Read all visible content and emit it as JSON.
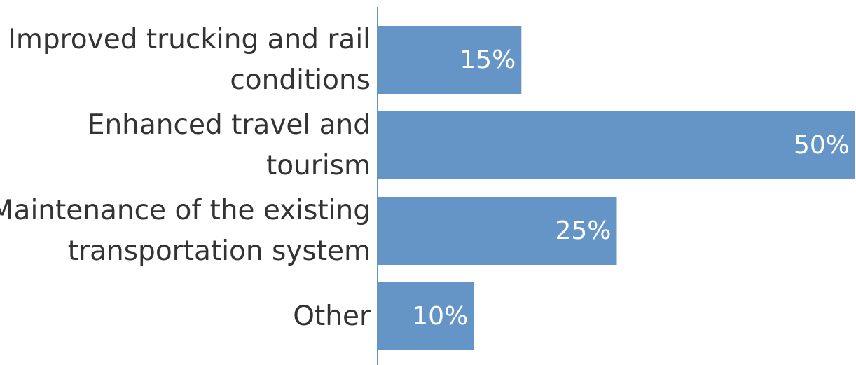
{
  "chart_data": {
    "type": "bar",
    "orientation": "horizontal",
    "categories": [
      [
        "Improved trucking and rail",
        "conditions"
      ],
      [
        "Enhanced travel and",
        "tourism"
      ],
      [
        "Maintenance of the existing",
        "transportation system"
      ],
      [
        "Other"
      ]
    ],
    "values": [
      15,
      50,
      25,
      10
    ],
    "data_labels": [
      "15%",
      "50%",
      "25%",
      "10%"
    ],
    "xlim": [
      0,
      50
    ],
    "grid": false,
    "legend": "none",
    "colors": {
      "bar": "#6495c6",
      "axis": "#6495c6",
      "label_text": "#333333",
      "value_text": "#ffffff"
    }
  }
}
